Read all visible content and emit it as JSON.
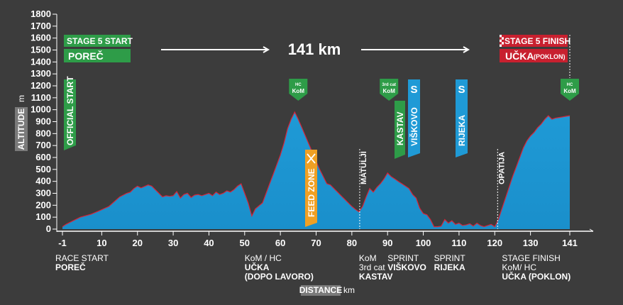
{
  "chart_data": {
    "type": "area",
    "distance_km": "141 km",
    "ylabel": "ALTITUDE",
    "yunit": "m",
    "xlabel": "DISTANCE",
    "xunit": "km",
    "ylim": [
      0,
      1800
    ],
    "xlim": [
      -1,
      141
    ],
    "yticks": [
      0,
      100,
      200,
      300,
      400,
      500,
      600,
      700,
      800,
      900,
      1000,
      1100,
      1200,
      1300,
      1400,
      1500,
      1600,
      1700,
      1800
    ],
    "xticks": [
      "-1",
      "10",
      "20",
      "30",
      "40",
      "50",
      "60",
      "70",
      "80",
      "90",
      "100",
      "110",
      "120",
      "130",
      "141"
    ],
    "xtick_values": [
      -1,
      10,
      20,
      30,
      40,
      50,
      60,
      70,
      80,
      90,
      100,
      110,
      120,
      130,
      141
    ],
    "profile_x": [
      -1,
      0,
      2,
      4,
      7,
      9,
      12,
      15,
      17,
      18,
      19,
      20,
      21,
      23,
      24,
      25,
      27,
      28,
      29,
      30,
      31,
      32,
      33,
      34,
      35,
      36,
      37,
      38,
      40,
      41,
      42,
      43,
      44,
      45,
      46,
      47,
      48,
      49,
      50,
      51,
      52,
      53,
      55,
      57,
      58,
      59,
      60,
      61,
      62,
      63,
      64,
      65,
      66,
      67,
      68,
      69,
      70,
      71,
      72,
      73,
      74,
      75,
      76,
      77,
      78,
      79,
      80,
      81,
      82,
      83,
      84,
      85,
      86,
      87,
      88,
      89,
      90,
      91,
      92,
      93,
      94,
      95,
      96,
      97,
      98,
      99,
      100,
      101,
      102,
      103,
      104,
      105,
      106,
      107,
      108,
      109,
      110,
      111,
      112,
      113,
      114,
      115,
      116,
      117,
      118,
      119,
      120,
      121,
      122,
      123,
      124,
      125,
      126,
      127,
      128,
      129,
      130,
      131,
      132,
      133,
      134,
      135,
      136,
      137,
      138,
      139,
      140,
      141
    ],
    "profile_y": [
      20,
      40,
      70,
      100,
      125,
      150,
      190,
      270,
      300,
      310,
      340,
      360,
      345,
      370,
      360,
      330,
      270,
      280,
      275,
      280,
      315,
      260,
      290,
      300,
      265,
      285,
      290,
      280,
      300,
      280,
      310,
      290,
      300,
      320,
      310,
      330,
      360,
      380,
      300,
      220,
      110,
      170,
      220,
      380,
      460,
      540,
      620,
      720,
      840,
      920,
      980,
      920,
      850,
      780,
      710,
      640,
      570,
      500,
      440,
      380,
      370,
      340,
      310,
      280,
      250,
      220,
      190,
      165,
      145,
      190,
      270,
      340,
      310,
      350,
      380,
      420,
      470,
      440,
      420,
      400,
      380,
      360,
      340,
      290,
      260,
      175,
      130,
      120,
      80,
      20,
      20,
      25,
      80,
      50,
      70,
      40,
      50,
      30,
      35,
      45,
      25,
      50,
      30,
      20,
      30,
      40,
      20,
      80,
      170,
      260,
      350,
      440,
      520,
      600,
      680,
      740,
      780,
      810,
      850,
      880,
      920,
      950,
      920,
      930,
      935,
      940,
      945,
      950
    ],
    "markers": {
      "official_start": "OFFICIAL START",
      "kom1": {
        "cat": "HC",
        "label": "KoM",
        "x": 65
      },
      "kom2": {
        "cat": "3rd cat",
        "label": "KoM",
        "x": 90
      },
      "kom3": {
        "cat": "HC",
        "label": "KoM",
        "x": 141
      },
      "kastav": "KASTAV",
      "sprint1": {
        "icon": "S",
        "name": "VIŠKOVO",
        "x": 93
      },
      "sprint2": {
        "icon": "S",
        "name": "RIJEKA",
        "x": 107
      },
      "feed_zone": "FEED ZONE",
      "matulji": {
        "name": "MATULJI",
        "x": 82
      },
      "opatija": {
        "name": "OPATIJA",
        "x": 121
      }
    },
    "start_box": {
      "line1": "STAGE 5",
      "line1b": "START",
      "line2": "POREČ"
    },
    "finish_box": {
      "line1": "STAGE 5",
      "line1b": "FINISH",
      "line2": "UČKA",
      "line2b": "(POKLON)"
    },
    "bottom_labels": [
      {
        "x": -1,
        "lines": [
          "RACE START",
          "POREČ"
        ],
        "bold": [
          false,
          true
        ]
      },
      {
        "x": 50,
        "lines": [
          "KoM / HC",
          "UČKA",
          "(DOPO LAVORO)"
        ],
        "bold": [
          false,
          true,
          true
        ]
      },
      {
        "x": 82,
        "lines": [
          "KoM",
          "3rd cat",
          "KASTAV"
        ],
        "bold": [
          false,
          false,
          true
        ]
      },
      {
        "x": 90,
        "lines": [
          "SPRINT",
          "VIŠKOVO"
        ],
        "bold": [
          false,
          true
        ]
      },
      {
        "x": 103,
        "lines": [
          "SPRINT",
          "RIJEKA"
        ],
        "bold": [
          false,
          true
        ]
      },
      {
        "x": 122,
        "lines": [
          "STAGE FINISH",
          "KoM/ HC",
          "UČKA (POKLON)"
        ],
        "bold": [
          false,
          false,
          true
        ]
      }
    ],
    "colors": {
      "background": "#3c3c3c",
      "profile_fill": "#1f9ad6",
      "profile_light": "#6fc3ea",
      "profile_stroke": "#d6243a",
      "green": "#2e9c48",
      "red": "#c8202f",
      "blue": "#1f9ad6",
      "orange": "#f0a023",
      "axis_label_bg": "#7a7a7a"
    }
  }
}
